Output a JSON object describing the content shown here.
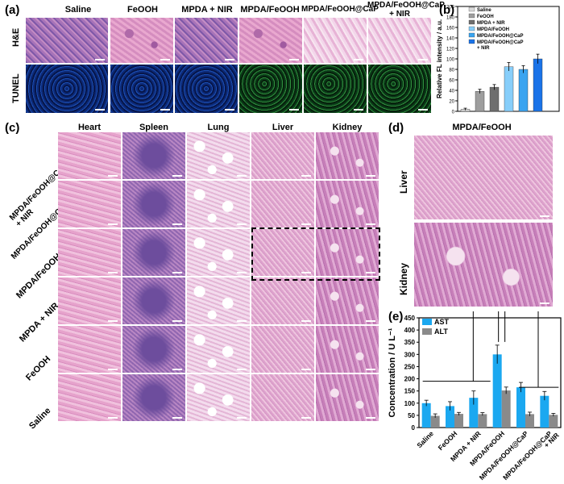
{
  "panel_labels": {
    "a": "(a)",
    "b": "(b)",
    "c": "(c)",
    "d": "(d)",
    "e": "(e)"
  },
  "panel_a": {
    "columns": [
      "Saline",
      "FeOOH",
      "MPDA + NIR",
      "MPDA/FeOOH",
      "MPDA/FeOOH@CaP",
      "MPDA/FeOOH@CaP\n+ NIR"
    ],
    "rows": [
      "H&E",
      "TUNEL"
    ]
  },
  "panel_c": {
    "columns": [
      "Heart",
      "Spleen",
      "Lung",
      "Liver",
      "Kidney"
    ],
    "rows": [
      "MPDA/FeOOH@CaP\n+ NIR",
      "MPDA/FeOOH@CaP",
      "MPDA/FeOOH",
      "MPDA + NIR",
      "FeOOH",
      "Saline"
    ]
  },
  "panel_d": {
    "title": "MPDA/FeOOH",
    "rows": [
      "Liver",
      "Kidney"
    ]
  },
  "chart_data": [
    {
      "type": "bar",
      "panel": "b",
      "ylabel": "Relative FL intensity / a.u.",
      "ylim": [
        0,
        200
      ],
      "yticks": [
        0,
        20,
        40,
        60,
        80,
        100,
        120,
        140,
        160,
        180,
        200
      ],
      "legend_position": "top",
      "categories": [
        "Saline",
        "FeOOH",
        "MPDA + NIR",
        "MPDA/FeOOH",
        "MPDA/FeOOH@CaP",
        "MPDA/FeOOH@CaP\n+ NIR"
      ],
      "values": [
        4,
        38,
        46,
        85,
        80,
        100
      ],
      "errors": [
        2,
        4,
        5,
        8,
        7,
        9
      ],
      "colors": [
        "#d9d9d9",
        "#9e9e9e",
        "#6e6e6e",
        "#87cefa",
        "#3aa4f0",
        "#1a73e8"
      ]
    },
    {
      "type": "bar",
      "panel": "e",
      "ylabel": "Concentration / U L⁻¹",
      "ylim": [
        0,
        450
      ],
      "yticks": [
        0,
        50,
        100,
        150,
        200,
        250,
        300,
        350,
        400,
        450
      ],
      "legend_position": "top-left",
      "categories": [
        "Saline",
        "FeOOH",
        "MPDA + NIR",
        "MPDA/FeOOH",
        "MPDA/FeOOH@CaP",
        "MPDA/FeOOH@CaP\n+ NIR"
      ],
      "series": [
        {
          "name": "AST",
          "color": "#1ba8f0",
          "values": [
            100,
            88,
            122,
            300,
            165,
            130
          ],
          "errors": [
            12,
            18,
            28,
            38,
            20,
            18
          ]
        },
        {
          "name": "ALT",
          "color": "#8a8a8a",
          "values": [
            48,
            56,
            55,
            152,
            55,
            52
          ],
          "errors": [
            8,
            6,
            6,
            14,
            8,
            6
          ]
        }
      ],
      "annotations": [
        "***",
        "***"
      ]
    }
  ]
}
